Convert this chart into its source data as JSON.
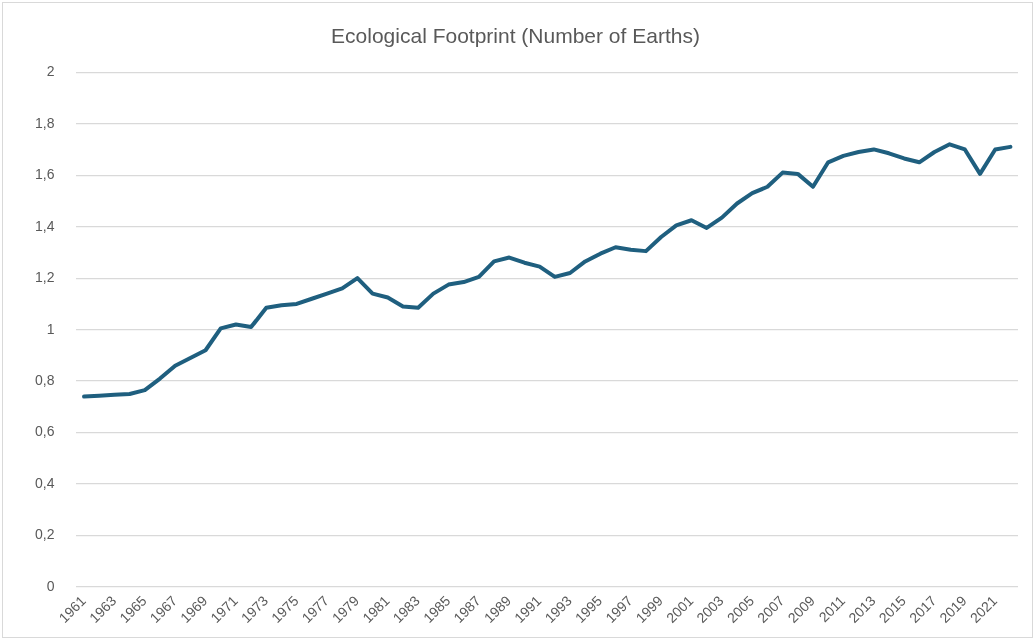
{
  "chart_data": {
    "type": "line",
    "title": "Ecological Footprint (Number of Earths)",
    "categories": [
      "1961",
      null,
      "1963",
      null,
      "1965",
      null,
      "1967",
      null,
      "1969",
      null,
      "1971",
      null,
      "1973",
      null,
      "1975",
      null,
      "1977",
      null,
      "1979",
      null,
      "1981",
      null,
      "1983",
      null,
      "1985",
      null,
      "1987",
      null,
      "1989",
      null,
      "1991",
      null,
      "1993",
      null,
      "1995",
      null,
      "1997",
      null,
      "1999",
      null,
      "2001",
      null,
      "2003",
      null,
      "2005",
      null,
      "2007",
      null,
      "2009",
      null,
      "2011",
      null,
      "2013",
      null,
      "2015",
      null,
      "2017",
      null,
      "2019",
      null,
      "2021",
      null
    ],
    "series": [
      {
        "color": "#1f5f7f",
        "values": [
          0.74,
          0.743,
          0.747,
          0.75,
          0.765,
          0.81,
          0.86,
          0.89,
          0.92,
          1.005,
          1.02,
          1.01,
          1.085,
          1.095,
          1.1,
          1.12,
          1.14,
          1.16,
          1.2,
          1.14,
          1.125,
          1.09,
          1.085,
          1.14,
          1.175,
          1.185,
          1.205,
          1.265,
          1.28,
          1.26,
          1.245,
          1.205,
          1.22,
          1.265,
          1.295,
          1.32,
          1.31,
          1.305,
          1.36,
          1.405,
          1.425,
          1.395,
          1.435,
          1.49,
          1.53,
          1.555,
          1.61,
          1.605,
          1.555,
          1.65,
          1.675,
          1.69,
          1.7,
          1.685,
          1.665,
          1.65,
          1.69,
          1.72,
          1.7,
          1.605,
          1.7,
          1.71
        ]
      }
    ],
    "ylim": [
      0,
      2
    ],
    "yticks": [
      0,
      {
        "value": 0.2,
        "label": "0,2"
      },
      {
        "value": 0.4,
        "label": "0,4"
      },
      {
        "value": 0.6,
        "label": "0,6"
      },
      {
        "value": 0.8,
        "label": "0,8"
      },
      1,
      {
        "value": 1.2,
        "label": "1,2"
      },
      {
        "value": 1.4,
        "label": "1,4"
      },
      {
        "value": 1.6,
        "label": "1,6"
      },
      {
        "value": 1.8,
        "label": "1,8"
      },
      2
    ],
    "grid": "y",
    "legend": false,
    "marker": "none",
    "line_style": "solid"
  }
}
